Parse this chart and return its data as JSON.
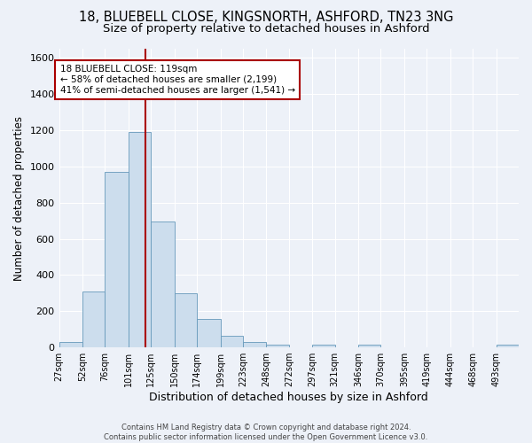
{
  "title_line1": "18, BLUEBELL CLOSE, KINGSNORTH, ASHFORD, TN23 3NG",
  "title_line2": "Size of property relative to detached houses in Ashford",
  "xlabel": "Distribution of detached houses by size in Ashford",
  "ylabel": "Number of detached properties",
  "bar_color": "#ccdded",
  "bar_edge_color": "#6699bb",
  "vline_color": "#aa0000",
  "vline_x": 119,
  "annotation_text": "18 BLUEBELL CLOSE: 119sqm\n← 58% of detached houses are smaller (2,199)\n41% of semi-detached houses are larger (1,541) →",
  "annotation_box_color": "white",
  "annotation_box_edge": "#aa0000",
  "bin_edges": [
    27,
    52,
    76,
    101,
    125,
    150,
    174,
    199,
    223,
    248,
    272,
    297,
    321,
    346,
    370,
    395,
    419,
    444,
    468,
    493,
    517
  ],
  "heights": [
    30,
    310,
    970,
    1190,
    695,
    300,
    155,
    65,
    30,
    15,
    0,
    15,
    0,
    15,
    0,
    0,
    0,
    0,
    0,
    15
  ],
  "ylim": [
    0,
    1650
  ],
  "yticks": [
    0,
    200,
    400,
    600,
    800,
    1000,
    1200,
    1400,
    1600
  ],
  "background_color": "#edf1f8",
  "footer_text": "Contains HM Land Registry data © Crown copyright and database right 2024.\nContains public sector information licensed under the Open Government Licence v3.0.",
  "title_fontsize": 10.5,
  "subtitle_fontsize": 9.5,
  "ytick_fontsize": 8,
  "xtick_fontsize": 7,
  "ylabel_fontsize": 8.5,
  "xlabel_fontsize": 9,
  "annotation_fontsize": 7.5,
  "footer_fontsize": 6
}
